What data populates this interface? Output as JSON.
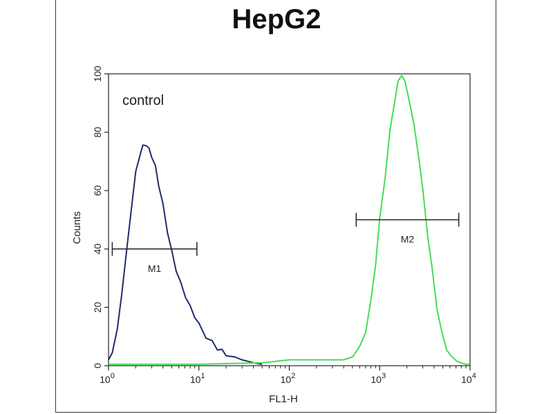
{
  "chart_data": {
    "type": "line",
    "title": "HepG2",
    "xlabel": "FL1-H",
    "ylabel": "Counts",
    "x_scale": "log",
    "xlim": [
      1,
      10000
    ],
    "ylim": [
      0,
      100
    ],
    "x_ticks": [
      1,
      10,
      100,
      1000,
      10000
    ],
    "x_tick_labels": [
      {
        "base": "10",
        "exp": "0"
      },
      {
        "base": "10",
        "exp": "1"
      },
      {
        "base": "10",
        "exp": "2"
      },
      {
        "base": "10",
        "exp": "3"
      },
      {
        "base": "10",
        "exp": "4"
      }
    ],
    "y_ticks": [
      0,
      20,
      40,
      60,
      80,
      100
    ],
    "y_tick_labels": [
      "0",
      "20",
      "40",
      "60",
      "80",
      "100"
    ],
    "grid": false,
    "annotation": "control",
    "series": [
      {
        "color": "#1f2a6b",
        "x": [
          1.0,
          1.1,
          1.25,
          1.4,
          1.6,
          1.8,
          2.0,
          2.2,
          2.4,
          2.6,
          2.8,
          3.0,
          3.3,
          3.6,
          4.0,
          4.5,
          5.0,
          5.6,
          6.3,
          7.1,
          8.0,
          9.0,
          10.0,
          12.0,
          14.0,
          16.0,
          18.0,
          20.0,
          25.0,
          30.0,
          35.0,
          40.0,
          50.0
        ],
        "y": [
          2,
          5,
          12,
          25,
          40,
          55,
          66,
          72,
          75,
          76,
          74,
          72,
          68,
          62,
          55,
          46,
          39,
          33,
          28,
          24,
          20,
          17,
          14,
          10,
          8,
          6,
          5,
          4,
          3,
          2,
          1.5,
          1,
          0.5
        ]
      },
      {
        "color": "#44dd55",
        "x": [
          1.0,
          10.0,
          50.0,
          100.0,
          200.0,
          300.0,
          400.0,
          500.0,
          600.0,
          700.0,
          800.0,
          900.0,
          1000.0,
          1150.0,
          1300.0,
          1450.0,
          1600.0,
          1750.0,
          1900.0,
          2100.0,
          2400.0,
          2700.0,
          3000.0,
          3400.0,
          3800.0,
          4300.0,
          4800.0,
          5500.0,
          6300.0,
          7200.0,
          8000.0,
          9000.0,
          10000.0
        ],
        "y": [
          0.5,
          0.5,
          1,
          2,
          2,
          2,
          2,
          3,
          6,
          12,
          22,
          35,
          50,
          65,
          80,
          90,
          97,
          100,
          97,
          92,
          82,
          72,
          60,
          45,
          33,
          20,
          12,
          6,
          3,
          1.5,
          1,
          0.5,
          0.5
        ]
      }
    ],
    "markers": [
      {
        "label": "M1",
        "x_start": 1.1,
        "x_end": 9.5,
        "y": 40
      },
      {
        "label": "M2",
        "x_start": 550,
        "x_end": 7500,
        "y": 50
      }
    ]
  }
}
